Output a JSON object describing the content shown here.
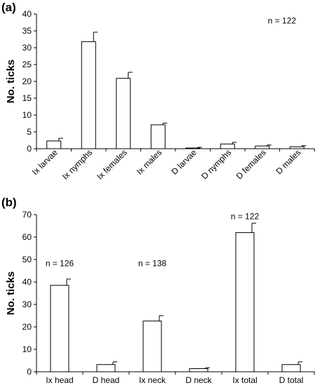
{
  "chart_data": [
    {
      "type": "bar",
      "panel_label": "(a)",
      "ylabel": "No. ticks",
      "ylim": [
        0,
        40
      ],
      "yticks": [
        0,
        5,
        10,
        15,
        20,
        25,
        30,
        35,
        40
      ],
      "categories": [
        "Ix larvae",
        "Ix nymphs",
        "Ix females",
        "Ix males",
        "D larvae",
        "D nymphs",
        "D females",
        "D males"
      ],
      "values": [
        2.3,
        31.8,
        20.9,
        7.1,
        0.2,
        1.4,
        0.8,
        0.6
      ],
      "errors": [
        0.8,
        2.8,
        1.8,
        0.5,
        0.2,
        0.5,
        0.3,
        0.3
      ],
      "annotations": [
        {
          "text": "n = 122",
          "category_anchor": "D females",
          "y": 37.2
        }
      ]
    },
    {
      "type": "bar",
      "panel_label": "(b)",
      "ylabel": "No. ticks",
      "ylim": [
        0,
        70
      ],
      "yticks": [
        0,
        10,
        20,
        30,
        40,
        50,
        60,
        70
      ],
      "categories": [
        "Ix head",
        "D head",
        "Ix neck",
        "D neck",
        "Ix total",
        "D total"
      ],
      "values": [
        38.5,
        3.2,
        22.6,
        1.4,
        62.0,
        3.2
      ],
      "errors": [
        2.8,
        1.2,
        2.4,
        0.4,
        4.2,
        1.2
      ],
      "annotations": [
        {
          "text": "n = 126",
          "category_anchor": "Ix head",
          "y": 47
        },
        {
          "text": "n = 138",
          "category_anchor": "Ix neck",
          "y": 47
        },
        {
          "text": "n = 122",
          "category_anchor": "Ix total",
          "y": 68
        }
      ]
    }
  ]
}
